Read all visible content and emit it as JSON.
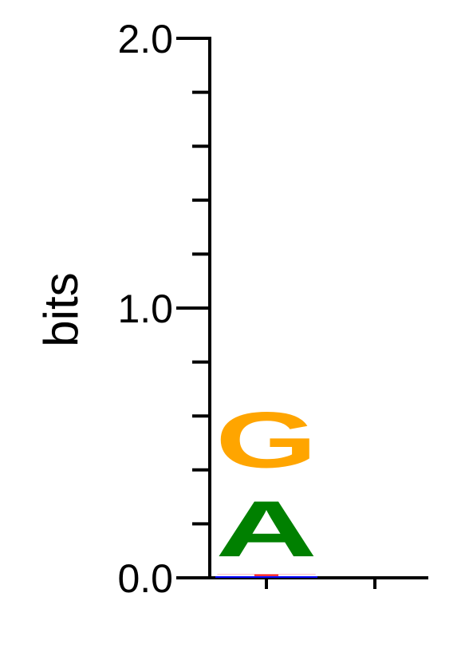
{
  "chart_data": {
    "type": "sequence-logo",
    "ylabel": "bits",
    "ylim": [
      0,
      2.0
    ],
    "y_tick_labels": [
      "0.0",
      "1.0",
      "2.0"
    ],
    "minor_ticks": [
      0.2,
      0.4,
      0.6,
      0.8,
      1.2,
      1.4,
      1.6,
      1.8
    ],
    "positions": [
      {
        "position": 1,
        "letters": [
          {
            "base": "T",
            "bits": 0.01,
            "color": "#ff0000"
          },
          {
            "base": "C",
            "bits": 0.005,
            "color": "#0000ff"
          },
          {
            "base": "A",
            "bits": 0.33,
            "color": "#008000"
          },
          {
            "base": "G",
            "bits": 0.33,
            "color": "#ffa500"
          }
        ]
      },
      {
        "position": 2,
        "letters": []
      }
    ]
  }
}
